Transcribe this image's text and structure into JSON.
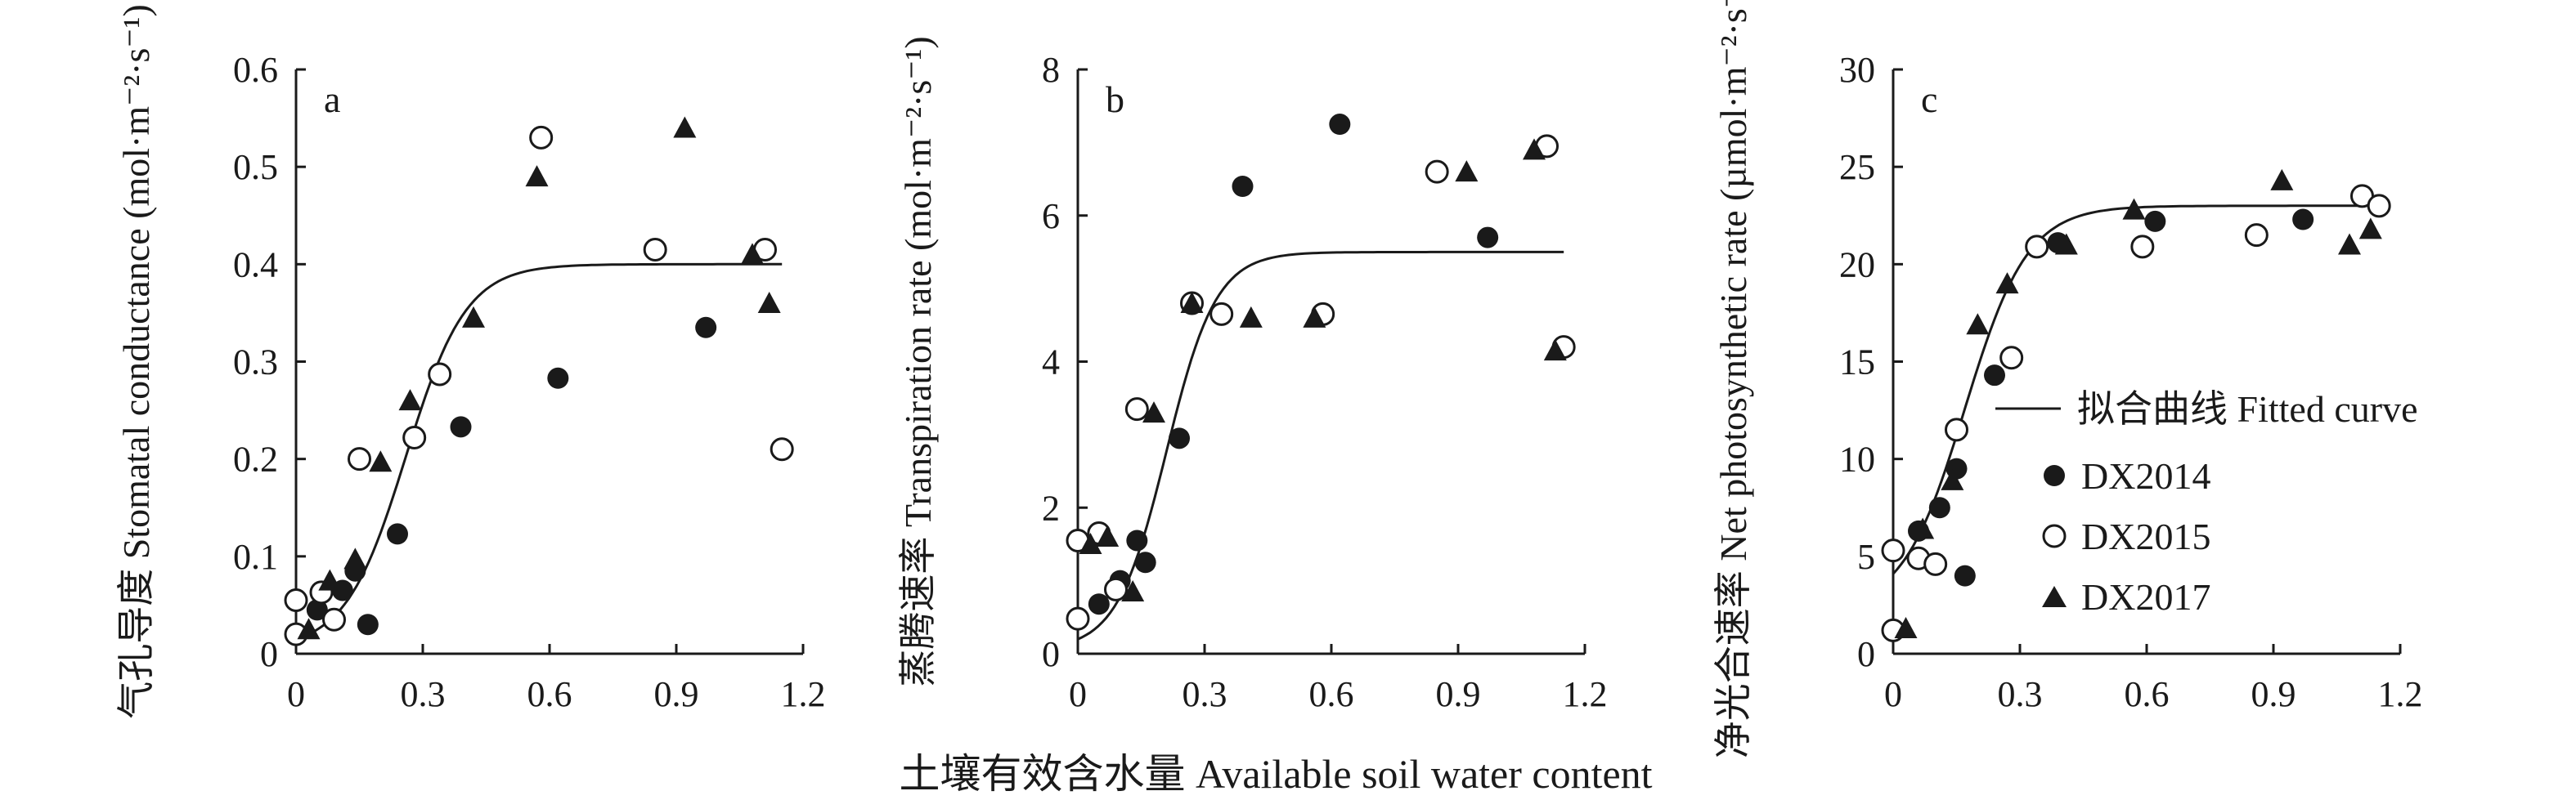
{
  "figure": {
    "xlabel": "土壤有效含水量 Available soil water content"
  },
  "legend": {
    "fitted": "拟合曲线 Fitted curve",
    "s2014": "DX2014",
    "s2015": "DX2015",
    "s2017": "DX2017"
  },
  "chart_data": [
    {
      "type": "scatter",
      "panel": "a",
      "ylabel": "气孔导度 Stomatal conductance (mol·m⁻²·s⁻¹)",
      "xlim": [
        0,
        1.2
      ],
      "ylim": [
        0,
        0.6
      ],
      "xticks": [
        "0",
        "0.3",
        "0.6",
        "0.9",
        "1.2"
      ],
      "yticks": [
        "0",
        "0.1",
        "0.2",
        "0.3",
        "0.4",
        "0.5",
        "0.6"
      ],
      "fit": {
        "ymax": 0.4,
        "k": 14,
        "x0": 0.26,
        "y0": 0.005
      },
      "series": [
        {
          "name": "DX2014",
          "marker": "filled-circle",
          "x": [
            0.05,
            0.11,
            0.14,
            0.17,
            0.24,
            0.39,
            0.62,
            0.97
          ],
          "y": [
            0.045,
            0.065,
            0.085,
            0.03,
            0.123,
            0.233,
            0.283,
            0.335
          ]
        },
        {
          "name": "DX2015",
          "marker": "open-circle",
          "x": [
            0,
            0,
            0.06,
            0.09,
            0.15,
            0.28,
            0.34,
            0.58,
            0.85,
            1.11,
            1.15
          ],
          "y": [
            0.055,
            0.02,
            0.063,
            0.035,
            0.2,
            0.222,
            0.287,
            0.53,
            0.415,
            0.415,
            0.21
          ]
        },
        {
          "name": "DX2017",
          "marker": "filled-triangle",
          "x": [
            0.03,
            0.08,
            0.14,
            0.2,
            0.27,
            0.42,
            0.57,
            0.92,
            1.08,
            1.12
          ],
          "y": [
            0.025,
            0.075,
            0.097,
            0.197,
            0.26,
            0.345,
            0.49,
            0.54,
            0.41,
            0.36
          ]
        }
      ]
    },
    {
      "type": "scatter",
      "panel": "b",
      "ylabel": "蒸腾速率 Transpiration rate (mol·m⁻²·s⁻¹)",
      "xlim": [
        0,
        1.2
      ],
      "ylim": [
        0,
        8
      ],
      "xticks": [
        "0",
        "0.3",
        "0.6",
        "0.9",
        "1.2"
      ],
      "yticks": [
        "0",
        "2",
        "4",
        "6",
        "8"
      ],
      "fit": {
        "ymax": 5.5,
        "k": 17,
        "x0": 0.21,
        "y0": 0.05
      },
      "series": [
        {
          "name": "DX2014",
          "marker": "filled-circle",
          "x": [
            0.05,
            0.1,
            0.14,
            0.16,
            0.24,
            0.39,
            0.62,
            0.97
          ],
          "y": [
            0.68,
            1.0,
            1.55,
            1.25,
            2.95,
            6.4,
            7.25,
            5.7
          ]
        },
        {
          "name": "DX2015",
          "marker": "open-circle",
          "x": [
            0,
            0,
            0.05,
            0.09,
            0.14,
            0.27,
            0.34,
            0.58,
            0.85,
            1.11,
            1.15
          ],
          "y": [
            0.48,
            1.55,
            1.65,
            0.88,
            3.35,
            4.8,
            4.65,
            4.65,
            6.6,
            6.95,
            4.2
          ]
        },
        {
          "name": "DX2017",
          "marker": "filled-triangle",
          "x": [
            0.03,
            0.07,
            0.13,
            0.18,
            0.27,
            0.41,
            0.56,
            0.92,
            1.08,
            1.13
          ],
          "y": [
            1.5,
            1.6,
            0.85,
            3.3,
            4.8,
            4.6,
            4.6,
            6.6,
            6.9,
            4.15
          ]
        }
      ]
    },
    {
      "type": "scatter",
      "panel": "c",
      "ylabel": "净光合速率 Net photosynthetic rate (µmol·m⁻²·s⁻¹)",
      "xlim": [
        0,
        1.2
      ],
      "ylim": [
        0,
        30
      ],
      "xticks": [
        "0",
        "0.3",
        "0.6",
        "0.9",
        "1.2"
      ],
      "yticks": [
        "0",
        "5",
        "10",
        "15",
        "20",
        "25",
        "30"
      ],
      "fit": {
        "ymax": 23,
        "k": 13.5,
        "x0": 0.17,
        "y0": 2.2
      },
      "series": [
        {
          "name": "DX2014",
          "marker": "filled-circle",
          "x": [
            0.06,
            0.11,
            0.15,
            0.17,
            0.24,
            0.39,
            0.62,
            0.97
          ],
          "y": [
            6.3,
            7.5,
            9.5,
            4.0,
            14.3,
            21.1,
            22.2,
            22.3
          ]
        },
        {
          "name": "DX2015",
          "marker": "open-circle",
          "x": [
            0,
            0,
            0.06,
            0.1,
            0.15,
            0.28,
            0.34,
            0.59,
            0.86,
            1.11,
            1.15
          ],
          "y": [
            5.3,
            1.2,
            4.9,
            4.6,
            11.5,
            15.2,
            20.9,
            20.9,
            21.5,
            23.5,
            23.0
          ]
        },
        {
          "name": "DX2017",
          "marker": "filled-triangle",
          "x": [
            0.03,
            0.07,
            0.14,
            0.2,
            0.27,
            0.41,
            0.57,
            0.92,
            1.08,
            1.13
          ],
          "y": [
            1.3,
            6.4,
            8.9,
            16.9,
            19.0,
            21.0,
            22.8,
            24.3,
            21.0,
            21.8
          ]
        }
      ]
    }
  ]
}
